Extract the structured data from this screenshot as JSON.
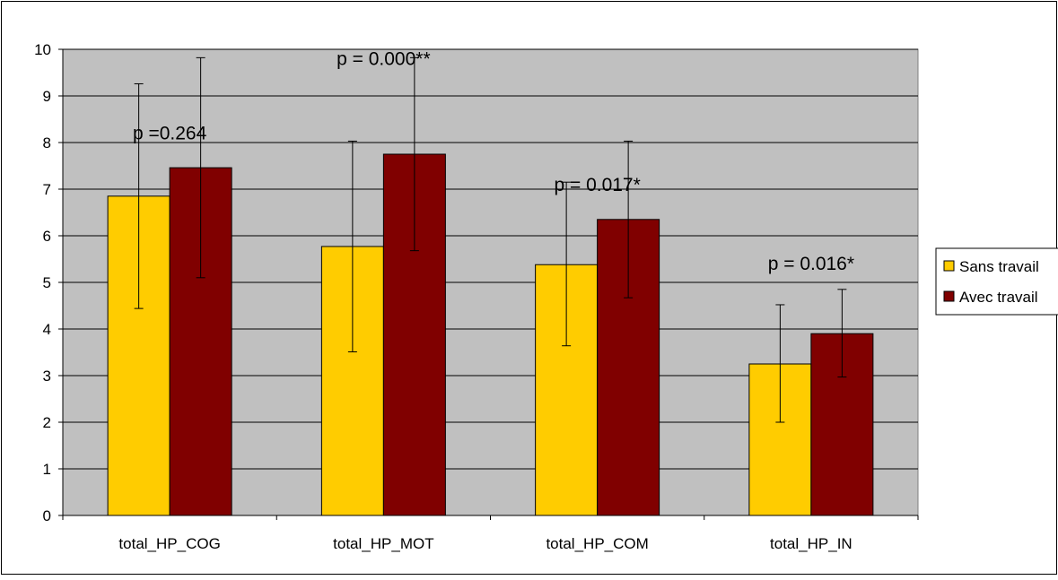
{
  "chart_data": {
    "type": "bar",
    "title": "",
    "xlabel": "",
    "ylabel": "",
    "categories": [
      "total_HP_COG",
      "total_HP_MOT",
      "total_HP_COM",
      "total_HP_IN"
    ],
    "series": [
      {
        "name": "Sans travail",
        "color": "#FFCC00",
        "values": [
          6.85,
          5.77,
          5.38,
          3.25
        ],
        "error_low": [
          4.44,
          3.51,
          3.64,
          2.0
        ],
        "error_high": [
          9.26,
          8.03,
          7.15,
          4.52
        ]
      },
      {
        "name": "Avec travail",
        "color": "#800000",
        "values": [
          7.46,
          7.75,
          6.35,
          3.9
        ],
        "error_low": [
          5.1,
          5.68,
          4.67,
          2.97
        ],
        "error_high": [
          9.82,
          9.82,
          8.03,
          4.85
        ]
      }
    ],
    "annotations": [
      {
        "text": "p =0.264",
        "category": 0,
        "y": 8.2
      },
      {
        "text": "p = 0.000**",
        "category": 1,
        "y": 9.8
      },
      {
        "text": "p = 0.017*",
        "category": 2,
        "y": 7.1
      },
      {
        "text": "p = 0.016*",
        "category": 3,
        "y": 5.4
      }
    ],
    "ylim": [
      0,
      10
    ],
    "yticks": [
      "0",
      "1",
      "2",
      "3",
      "4",
      "5",
      "6",
      "7",
      "8",
      "9",
      "10"
    ],
    "grid": true,
    "plot_background": "#C0C0C0",
    "legend_position": "right"
  }
}
